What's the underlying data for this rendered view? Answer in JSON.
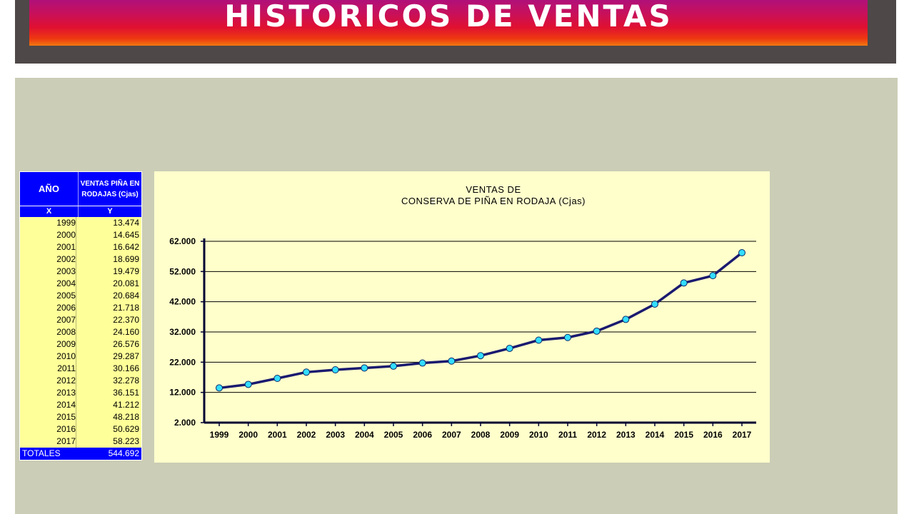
{
  "header": {
    "title": "HISTORICOS DE VENTAS"
  },
  "table": {
    "col_ano": "AÑO",
    "col_ventas": "VENTAS PIÑA EN RODAJAS (Cjas)",
    "col_x": "X",
    "col_y": "Y",
    "rows": [
      {
        "year": "1999",
        "value": "13.474"
      },
      {
        "year": "2000",
        "value": "14.645"
      },
      {
        "year": "2001",
        "value": "16.642"
      },
      {
        "year": "2002",
        "value": "18.699"
      },
      {
        "year": "2003",
        "value": "19.479"
      },
      {
        "year": "2004",
        "value": "20.081"
      },
      {
        "year": "2005",
        "value": "20.684"
      },
      {
        "year": "2006",
        "value": "21.718"
      },
      {
        "year": "2007",
        "value": "22.370"
      },
      {
        "year": "2008",
        "value": "24.160"
      },
      {
        "year": "2009",
        "value": "26.576"
      },
      {
        "year": "2010",
        "value": "29.287"
      },
      {
        "year": "2011",
        "value": "30.166"
      },
      {
        "year": "2012",
        "value": "32.278"
      },
      {
        "year": "2013",
        "value": "36.151"
      },
      {
        "year": "2014",
        "value": "41.212"
      },
      {
        "year": "2015",
        "value": "48.218"
      },
      {
        "year": "2016",
        "value": "50.629"
      },
      {
        "year": "2017",
        "value": "58.223"
      }
    ],
    "total_label": "TOTALES",
    "total_value": "544.692"
  },
  "chart_data": {
    "type": "line",
    "title_line1": "VENTAS DE",
    "title_line2": "CONSERVA DE PIÑA EN RODAJA (Cjas)",
    "xlabel": "",
    "ylabel": "",
    "categories": [
      "1999",
      "2000",
      "2001",
      "2002",
      "2003",
      "2004",
      "2005",
      "2006",
      "2007",
      "2008",
      "2009",
      "2010",
      "2011",
      "2012",
      "2013",
      "2014",
      "2015",
      "2016",
      "2017"
    ],
    "series": [
      {
        "values": [
          13474,
          14645,
          16642,
          18699,
          19479,
          20081,
          20684,
          21718,
          22370,
          24160,
          26576,
          29287,
          30166,
          32278,
          36151,
          41212,
          48218,
          50629,
          58223
        ],
        "color": "#1a1a70",
        "marker_color": "#33ddff"
      }
    ],
    "ylim": [
      2000,
      62000
    ],
    "yticks": [
      2000,
      12000,
      22000,
      32000,
      42000,
      52000,
      62000
    ],
    "ytick_labels": [
      "2.000",
      "12.000",
      "22.000",
      "32.000",
      "42.000",
      "52.000",
      "62.000"
    ],
    "grid": true
  }
}
